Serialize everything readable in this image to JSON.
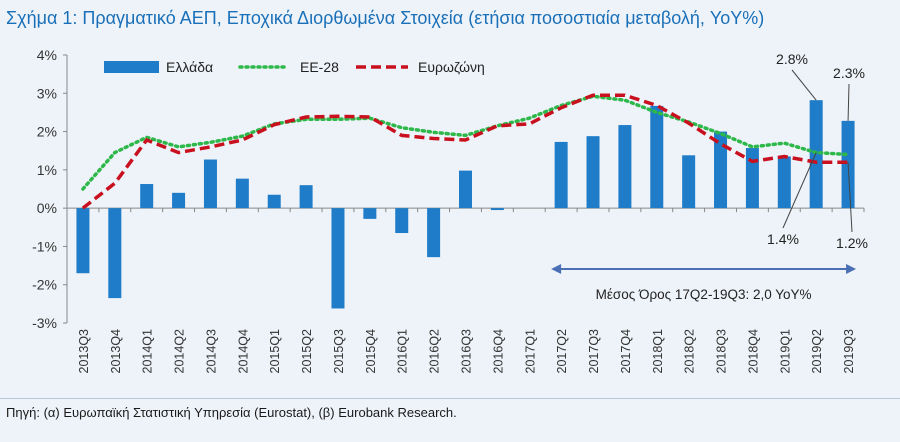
{
  "title": "Σχήμα 1: Πραγματικό ΑΕΠ, Εποχικά Διορθωμένα Στοιχεία (ετήσια ποσοστιαία μεταβολή, YoY%)",
  "source": "Πηγή: (α) Ευρωπαϊκή Στατιστική Υπηρεσία (Eurostat), (β) Eurobank Research.",
  "colors": {
    "greece": "#1f7cc8",
    "eu28": "#2eb84a",
    "eurozone": "#c8101e",
    "arrow": "#4a6fb5",
    "axis": "#888888"
  },
  "chart_data": {
    "type": "bar",
    "title": "Πραγματικό ΑΕΠ, Εποχικά Διορθωμένα Στοιχεία (ετήσια ποσοστιαία μεταβολή, YoY%)",
    "categories": [
      "2013Q3",
      "2013Q4",
      "2014Q1",
      "2014Q2",
      "2014Q3",
      "2014Q4",
      "2015Q1",
      "2015Q2",
      "2015Q3",
      "2015Q4",
      "2016Q1",
      "2016Q2",
      "2016Q3",
      "2016Q4",
      "2017Q1",
      "2017Q2",
      "2017Q3",
      "2017Q4",
      "2018Q1",
      "2018Q2",
      "2018Q3",
      "2018Q4",
      "2019Q1",
      "2019Q2",
      "2019Q3"
    ],
    "series": [
      {
        "name": "Ελλάδα",
        "kind": "bar",
        "values": [
          -1.7,
          -2.35,
          0.63,
          0.4,
          1.27,
          0.77,
          0.35,
          0.6,
          -2.62,
          -0.28,
          -0.65,
          -1.28,
          0.98,
          -0.05,
          0.0,
          1.73,
          1.88,
          2.17,
          2.67,
          1.38,
          2.0,
          1.57,
          1.35,
          2.82,
          2.28
        ]
      },
      {
        "name": "ΕΕ-28",
        "kind": "line",
        "values": [
          0.5,
          1.45,
          1.85,
          1.6,
          1.72,
          1.88,
          2.2,
          2.32,
          2.32,
          2.35,
          2.1,
          1.98,
          1.9,
          2.15,
          2.35,
          2.68,
          2.92,
          2.82,
          2.5,
          2.25,
          1.95,
          1.6,
          1.7,
          1.45,
          1.4
        ]
      },
      {
        "name": "Ευρωζώνη",
        "kind": "line",
        "values": [
          0.0,
          0.65,
          1.78,
          1.45,
          1.6,
          1.78,
          2.18,
          2.38,
          2.4,
          2.38,
          1.9,
          1.82,
          1.78,
          2.15,
          2.2,
          2.62,
          2.95,
          2.95,
          2.68,
          2.22,
          1.68,
          1.22,
          1.35,
          1.2,
          1.2
        ]
      }
    ],
    "ylim": [
      -3,
      4
    ],
    "yticks": [
      "-3%",
      "-2%",
      "-1%",
      "0%",
      "1%",
      "2%",
      "3%",
      "4%"
    ],
    "xlabel": "",
    "ylabel": "",
    "legend": "top-left",
    "annotations": [
      {
        "text": "2.8%",
        "category": "2019Q2",
        "series": "Ελλάδα"
      },
      {
        "text": "2.3%",
        "category": "2019Q3",
        "series": "Ελλάδα"
      },
      {
        "text": "1.4%",
        "category": "2019Q2",
        "series": "ΕΕ-28"
      },
      {
        "text": "1.2%",
        "category": "2019Q3",
        "series": "Ευρωζώνη"
      }
    ],
    "range_note": {
      "text": "Μέσος Όρος 17Q2-19Q3: 2,0 YoY%",
      "from": "2017Q2",
      "to": "2019Q3"
    }
  }
}
